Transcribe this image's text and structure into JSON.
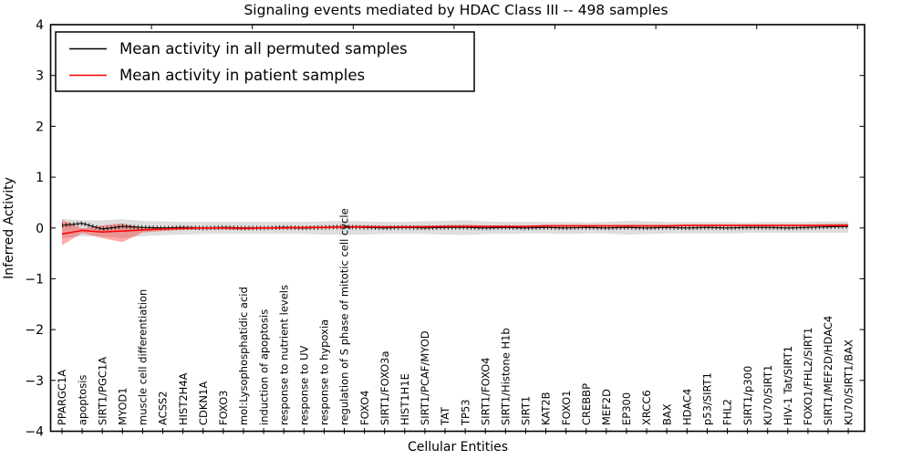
{
  "chart_data": {
    "type": "line",
    "title": "Signaling events mediated by HDAC Class III -- 498 samples",
    "xlabel": "Cellular Entities",
    "ylabel": "Inferred Activity",
    "ylim": [
      -4,
      4
    ],
    "yticks": [
      4,
      3,
      2,
      1,
      0,
      -1,
      -2,
      -3,
      -4
    ],
    "xticks_top": [
      5,
      10,
      15,
      20,
      25,
      30,
      35,
      40
    ],
    "grid": false,
    "legend_position": "upper left",
    "categories": [
      "PPARGC1A",
      "apoptosis",
      "SIRT1/PGC1A",
      "MYOD1",
      "muscle cell differentiation",
      "ACSS2",
      "HIST2H4A",
      "CDKN1A",
      "FOXO3",
      "mol:Lysophosphatidic acid",
      "induction of apoptosis",
      "response to nutrient levels",
      "response to UV",
      "response to hypoxia",
      "regulation of S phase of mitotic cell cycle",
      "FOXO4",
      "SIRT1/FOXO3a",
      "HIST1H1E",
      "SIRT1/PCAF/MYOD",
      "TAT",
      "TP53",
      "SIRT1/FOXO4",
      "SIRT1/Histone H1b",
      "SIRT1",
      "KAT2B",
      "FOXO1",
      "CREBBP",
      "MEF2D",
      "EP300",
      "XRCC6",
      "BAX",
      "HDAC4",
      "p53/SIRT1",
      "FHL2",
      "SIRT1/p300",
      "KU70/SIRT1",
      "HIV-1 Tat/SIRT1",
      "FOXO1/FHL2/SIRT1",
      "SIRT1/MEF2D/HDAC4",
      "KU70/SIRT1/BAX"
    ],
    "series": [
      {
        "name": "Mean activity in all permuted samples",
        "color": "#000000",
        "values": [
          0.05,
          0.09,
          -0.02,
          0.03,
          0.01,
          0.0,
          0.01,
          0.0,
          0.01,
          0.0,
          0.0,
          0.01,
          0.0,
          0.01,
          0.02,
          0.01,
          0.0,
          0.01,
          0.0,
          0.01,
          0.01,
          0.0,
          0.01,
          0.0,
          0.01,
          0.0,
          0.01,
          0.0,
          0.01,
          0.0,
          0.01,
          0.0,
          0.01,
          0.0,
          0.01,
          0.01,
          0.0,
          0.01,
          0.02,
          0.03
        ]
      },
      {
        "name": "Mean activity in patient samples",
        "color": "#ff0000",
        "values": [
          -0.12,
          -0.05,
          -0.08,
          -0.06,
          -0.04,
          -0.02,
          -0.01,
          0.0,
          0.0,
          -0.01,
          0.0,
          0.0,
          0.01,
          0.01,
          0.02,
          0.02,
          0.02,
          0.02,
          0.02,
          0.03,
          0.03,
          0.03,
          0.03,
          0.03,
          0.04,
          0.04,
          0.04,
          0.04,
          0.04,
          0.04,
          0.04,
          0.05,
          0.05,
          0.05,
          0.05,
          0.05,
          0.05,
          0.05,
          0.05,
          0.05
        ]
      }
    ],
    "bands": [
      {
        "name": "permuted samples range",
        "color": "#999999",
        "opacity": 0.32,
        "upper": [
          0.18,
          0.15,
          0.15,
          0.17,
          0.14,
          0.13,
          0.12,
          0.12,
          0.12,
          0.12,
          0.12,
          0.12,
          0.12,
          0.13,
          0.14,
          0.13,
          0.12,
          0.12,
          0.13,
          0.14,
          0.15,
          0.13,
          0.12,
          0.12,
          0.12,
          0.12,
          0.11,
          0.12,
          0.14,
          0.13,
          0.12,
          0.12,
          0.12,
          0.12,
          0.11,
          0.12,
          0.12,
          0.12,
          0.13,
          0.13
        ],
        "lower": [
          -0.2,
          -0.16,
          -0.17,
          -0.2,
          -0.16,
          -0.14,
          -0.13,
          -0.12,
          -0.12,
          -0.12,
          -0.12,
          -0.12,
          -0.12,
          -0.13,
          -0.14,
          -0.13,
          -0.12,
          -0.12,
          -0.12,
          -0.13,
          -0.14,
          -0.12,
          -0.12,
          -0.11,
          -0.11,
          -0.12,
          -0.11,
          -0.11,
          -0.13,
          -0.12,
          -0.11,
          -0.11,
          -0.11,
          -0.11,
          -0.1,
          -0.1,
          -0.1,
          -0.1,
          -0.1,
          -0.1
        ]
      },
      {
        "name": "patient samples range",
        "color": "#ff0000",
        "opacity": 0.33,
        "upper": [
          0.16,
          -0.01,
          0.05,
          0.09,
          0.01,
          0.01,
          0.02,
          0.02,
          0.02,
          0.02,
          0.02,
          0.03,
          0.03,
          0.04,
          0.05,
          0.05,
          0.04,
          0.04,
          0.05,
          0.05,
          0.06,
          0.05,
          0.05,
          0.05,
          0.06,
          0.06,
          0.06,
          0.06,
          0.06,
          0.06,
          0.06,
          0.07,
          0.07,
          0.07,
          0.07,
          0.07,
          0.07,
          0.07,
          0.08,
          0.08
        ],
        "lower": [
          -0.34,
          -0.1,
          -0.2,
          -0.28,
          -0.09,
          -0.06,
          -0.04,
          -0.03,
          -0.03,
          -0.04,
          -0.02,
          -0.02,
          -0.02,
          -0.01,
          -0.01,
          0.0,
          0.0,
          0.0,
          0.0,
          0.0,
          0.01,
          0.01,
          0.01,
          0.01,
          0.02,
          0.02,
          0.02,
          0.02,
          0.02,
          0.02,
          0.02,
          0.03,
          0.03,
          0.03,
          0.03,
          0.03,
          0.03,
          0.03,
          0.03,
          0.03
        ]
      }
    ],
    "legend": {
      "entries": [
        {
          "label": "Mean activity in all permuted samples",
          "color": "#000000"
        },
        {
          "label": "Mean activity in patient samples",
          "color": "#ff0000"
        }
      ]
    }
  }
}
